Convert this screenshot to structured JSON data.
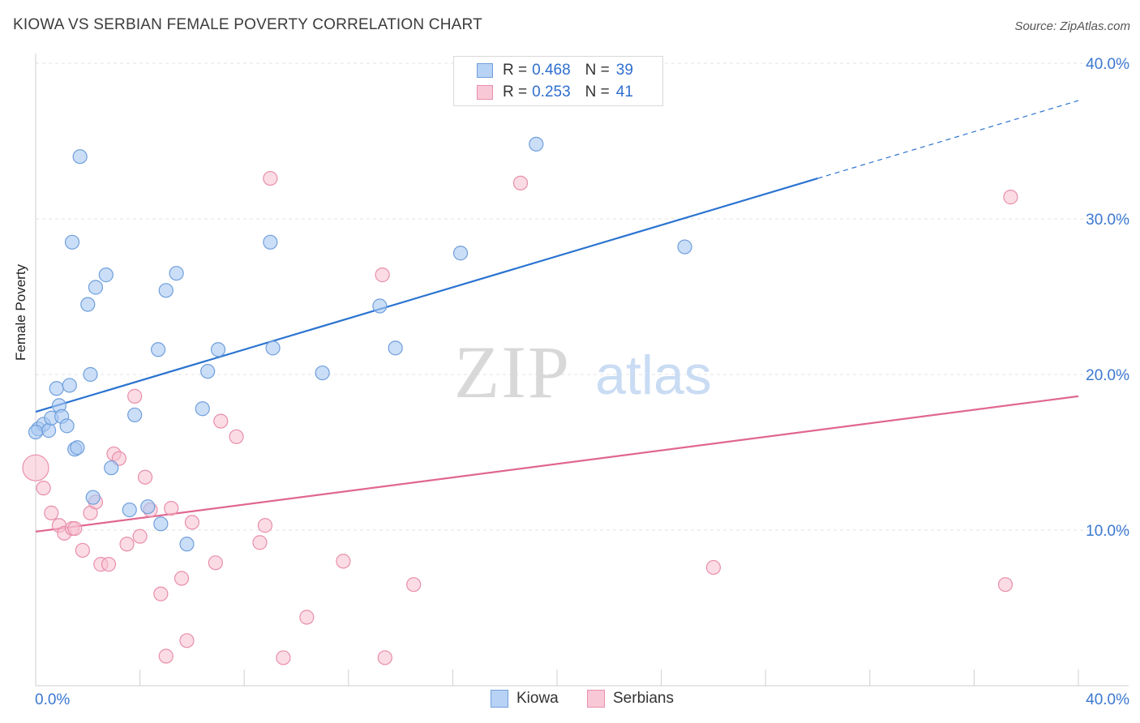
{
  "title": "KIOWA VS SERBIAN FEMALE POVERTY CORRELATION CHART",
  "source": "Source: ZipAtlas.com",
  "watermark": {
    "zip": "ZIP",
    "atlas": "atlas"
  },
  "legend": {
    "rows": [
      {
        "r_label": "R =",
        "r_value": "0.468",
        "n_label": "N =",
        "n_value": "39"
      },
      {
        "r_label": "R =",
        "r_value": "0.253",
        "n_label": "N =",
        "n_value": "41"
      }
    ]
  },
  "bottom_legend": {
    "kiowa": "Kiowa",
    "serbians": "Serbians"
  },
  "colors": {
    "kiowa_fill": "#a9c8f2",
    "kiowa_stroke": "#6f9fdc",
    "kiowa_line": "#2b74d0",
    "serbian_fill": "#f7bfd0",
    "serbian_stroke": "#e88eaa",
    "serbian_line": "#e0678f",
    "axis_label": "#3b78d0"
  },
  "chart_data": {
    "type": "scatter",
    "title": "KIOWA VS SERBIAN FEMALE POVERTY CORRELATION CHART",
    "xlabel": "",
    "ylabel": "Female Poverty",
    "xlim": [
      0,
      40
    ],
    "ylim": [
      0,
      40
    ],
    "x_tick_labels": [
      "0.0%",
      "40.0%"
    ],
    "y_tick_labels": [
      "10.0%",
      "20.0%",
      "30.0%",
      "40.0%"
    ],
    "y_ticks": [
      10,
      20,
      30,
      40
    ],
    "grid": true,
    "series": [
      {
        "name": "Kiowa",
        "r": 0.468,
        "n": 39,
        "trend": {
          "x0": 0,
          "y0": 17.6,
          "x1": 30,
          "y1": 32.6,
          "dashed_to_x": 40,
          "dashed_to_y": 37.6
        },
        "points": [
          [
            0.1,
            16.5
          ],
          [
            0.3,
            16.8
          ],
          [
            0.5,
            16.4
          ],
          [
            0.6,
            17.2
          ],
          [
            0.8,
            19.1
          ],
          [
            0.9,
            18.0
          ],
          [
            1.0,
            17.3
          ],
          [
            1.2,
            16.7
          ],
          [
            1.3,
            19.3
          ],
          [
            1.5,
            15.2
          ],
          [
            1.6,
            15.3
          ],
          [
            1.7,
            34.0
          ],
          [
            1.4,
            28.5
          ],
          [
            2.0,
            24.5
          ],
          [
            2.1,
            20.0
          ],
          [
            2.2,
            12.1
          ],
          [
            2.3,
            25.6
          ],
          [
            2.7,
            26.4
          ],
          [
            2.9,
            14.0
          ],
          [
            3.6,
            11.3
          ],
          [
            3.8,
            17.4
          ],
          [
            4.3,
            11.5
          ],
          [
            4.7,
            21.6
          ],
          [
            4.8,
            10.4
          ],
          [
            5.0,
            25.4
          ],
          [
            5.4,
            26.5
          ],
          [
            5.8,
            9.1
          ],
          [
            6.4,
            17.8
          ],
          [
            6.6,
            20.2
          ],
          [
            7.0,
            21.6
          ],
          [
            9.0,
            28.5
          ],
          [
            9.1,
            21.7
          ],
          [
            11.0,
            20.1
          ],
          [
            13.2,
            24.4
          ],
          [
            13.8,
            21.7
          ],
          [
            16.3,
            27.8
          ],
          [
            19.2,
            34.8
          ],
          [
            24.9,
            28.2
          ],
          [
            0.0,
            16.3
          ]
        ]
      },
      {
        "name": "Serbians",
        "r": 0.253,
        "n": 41,
        "trend": {
          "x0": 0,
          "y0": 9.9,
          "x1": 40,
          "y1": 18.6
        },
        "points": [
          [
            0.0,
            14.0
          ],
          [
            0.3,
            12.7
          ],
          [
            0.6,
            11.1
          ],
          [
            0.9,
            10.3
          ],
          [
            1.1,
            9.8
          ],
          [
            1.4,
            10.1
          ],
          [
            1.5,
            10.1
          ],
          [
            1.8,
            8.7
          ],
          [
            2.1,
            11.1
          ],
          [
            2.3,
            11.8
          ],
          [
            2.5,
            7.8
          ],
          [
            2.8,
            7.8
          ],
          [
            3.0,
            14.9
          ],
          [
            3.2,
            14.6
          ],
          [
            3.5,
            9.1
          ],
          [
            3.8,
            18.6
          ],
          [
            4.0,
            9.6
          ],
          [
            4.2,
            13.4
          ],
          [
            4.4,
            11.3
          ],
          [
            4.8,
            5.9
          ],
          [
            5.0,
            1.9
          ],
          [
            5.2,
            11.4
          ],
          [
            5.6,
            6.9
          ],
          [
            5.8,
            2.9
          ],
          [
            6.0,
            10.5
          ],
          [
            6.9,
            7.9
          ],
          [
            7.1,
            17.0
          ],
          [
            7.7,
            16.0
          ],
          [
            8.6,
            9.2
          ],
          [
            8.8,
            10.3
          ],
          [
            9.0,
            32.6
          ],
          [
            9.5,
            1.8
          ],
          [
            10.4,
            4.4
          ],
          [
            11.8,
            8.0
          ],
          [
            13.3,
            26.4
          ],
          [
            13.4,
            1.8
          ],
          [
            14.5,
            6.5
          ],
          [
            18.6,
            32.3
          ],
          [
            26.0,
            7.6
          ],
          [
            37.2,
            6.5
          ],
          [
            37.4,
            31.4
          ]
        ]
      }
    ]
  }
}
